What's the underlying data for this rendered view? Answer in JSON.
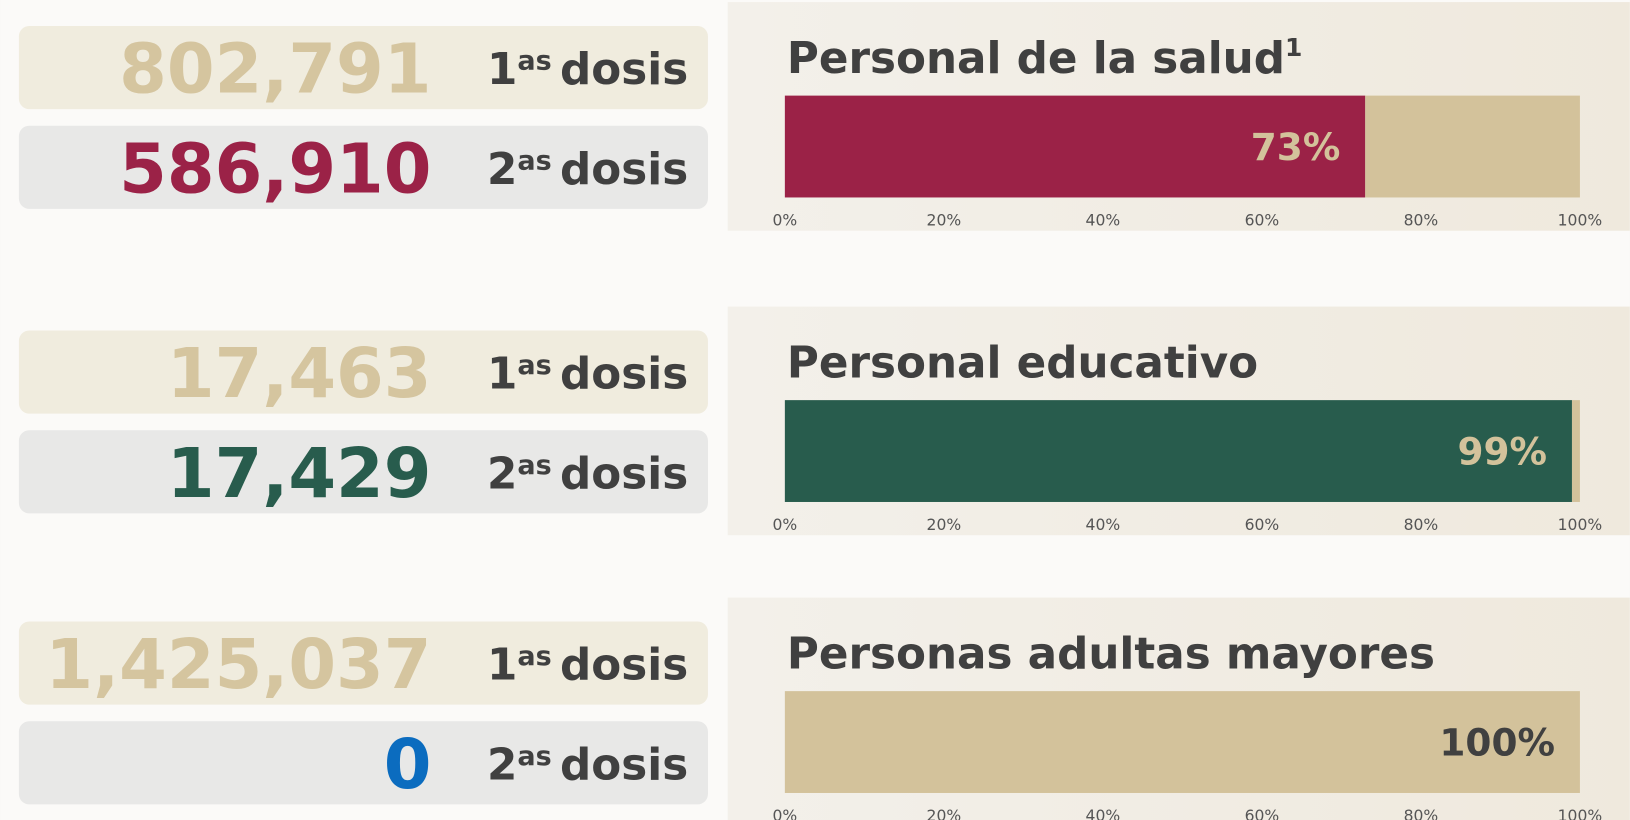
{
  "sections": [
    {
      "doses": [
        {
          "count": "802,791",
          "color": "#d5c59f",
          "ordinal": "1",
          "suffix": "as",
          "word": "dosis"
        },
        {
          "count": "586,910",
          "color": "#9b2247",
          "ordinal": "2",
          "suffix": "as",
          "word": "dosis"
        }
      ]
    },
    {
      "doses": [
        {
          "count": "17,463",
          "color": "#d5c59f",
          "ordinal": "1",
          "suffix": "as",
          "word": "dosis"
        },
        {
          "count": "17,429",
          "color": "#285c4d",
          "ordinal": "2",
          "suffix": "as",
          "word": "dosis"
        }
      ]
    },
    {
      "doses": [
        {
          "count": "1,425,037",
          "color": "#d5c59f",
          "ordinal": "1",
          "suffix": "as",
          "word": "dosis"
        },
        {
          "count": "0",
          "color": "#0b6cbf",
          "ordinal": "2",
          "suffix": "as",
          "word": "dosis"
        }
      ]
    }
  ],
  "chart_data": [
    {
      "type": "stacked_bar_h",
      "title": "Personal de la salud",
      "title_sup": "1",
      "series": [
        {
          "color": "#9b2247",
          "label_color": "#d3c29b",
          "values": [
            73
          ],
          "value_labels": [
            "73%"
          ]
        },
        {
          "color": "#d3c29b",
          "label_color": "#404040",
          "values": [
            27
          ],
          "value_labels": [
            null
          ]
        }
      ],
      "xlim": [
        0,
        100
      ],
      "xticks": [
        {
          "value": 0,
          "label": "0%"
        },
        {
          "value": 20,
          "label": "20%"
        },
        {
          "value": 40,
          "label": "40%"
        },
        {
          "value": 60,
          "label": "60%"
        },
        {
          "value": 80,
          "label": "80%"
        },
        {
          "value": 100,
          "label": "100%"
        }
      ]
    },
    {
      "type": "stacked_bar_h",
      "title": "Personal educativo",
      "series": [
        {
          "color": "#285c4d",
          "label_color": "#d3c29b",
          "values": [
            99
          ],
          "value_labels": [
            "99%"
          ]
        },
        {
          "color": "#d3c29b",
          "label_color": "#404040",
          "values": [
            1
          ],
          "value_labels": [
            null
          ]
        }
      ],
      "xlim": [
        0,
        100
      ],
      "xticks": [
        {
          "value": 0,
          "label": "0%"
        },
        {
          "value": 20,
          "label": "20%"
        },
        {
          "value": 40,
          "label": "40%"
        },
        {
          "value": 60,
          "label": "60%"
        },
        {
          "value": 80,
          "label": "80%"
        },
        {
          "value": 100,
          "label": "100%"
        }
      ]
    },
    {
      "type": "stacked_bar_h",
      "title": "Personas adultas mayores",
      "series": [
        {
          "color": "#0b6cbf",
          "label_color": "#0b6cbf",
          "values": [
            null
          ],
          "value_labels": [
            "-%"
          ]
        },
        {
          "color": "#d3c29b",
          "label_color": "#404040",
          "values": [
            100
          ],
          "value_labels": [
            "100%"
          ]
        }
      ],
      "xlim": [
        0,
        100
      ],
      "xticks": [
        {
          "value": 0,
          "label": "0%"
        },
        {
          "value": 20,
          "label": "20%"
        },
        {
          "value": 40,
          "label": "40%"
        },
        {
          "value": 60,
          "label": "60%"
        },
        {
          "value": 80,
          "label": "80%"
        },
        {
          "value": 100,
          "label": "100%"
        }
      ]
    }
  ]
}
